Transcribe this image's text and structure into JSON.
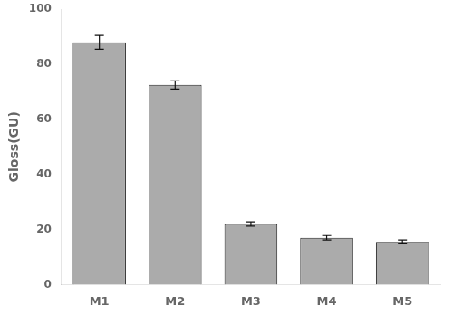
{
  "chart_data": {
    "type": "bar",
    "categories": [
      "M1",
      "M2",
      "M3",
      "M4",
      "M5"
    ],
    "values": [
      88.0,
      72.5,
      22.0,
      17.0,
      15.5
    ],
    "errors": [
      2.5,
      1.5,
      0.8,
      0.8,
      0.7
    ],
    "color": "#ABABAB",
    "ylabel": "Gloss(GU)",
    "ylim": [
      0,
      100
    ],
    "yticks": [
      0,
      20,
      40,
      60,
      80,
      100
    ],
    "grid": false
  }
}
